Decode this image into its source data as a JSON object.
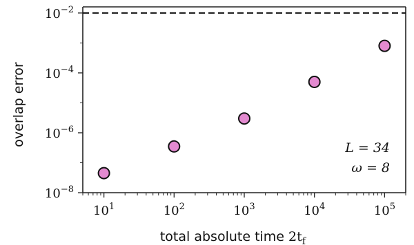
{
  "chart_data": {
    "type": "scatter",
    "xlabel": "total absolute time",
    "xlabel_math": "2t",
    "xlabel_math_sub": "f",
    "ylabel": "overlap error",
    "xscale": "log",
    "yscale": "log",
    "xlim": [
      5,
      200000
    ],
    "ylim": [
      1e-08,
      0.016
    ],
    "x_ticks": [
      {
        "value": 10,
        "base": "10",
        "exp": "1"
      },
      {
        "value": 100,
        "base": "10",
        "exp": "2"
      },
      {
        "value": 1000,
        "base": "10",
        "exp": "3"
      },
      {
        "value": 10000,
        "base": "10",
        "exp": "4"
      },
      {
        "value": 100000,
        "base": "10",
        "exp": "5"
      }
    ],
    "y_ticks": [
      {
        "value": 1e-08,
        "base": "10",
        "exp": "−8"
      },
      {
        "value": 1e-06,
        "base": "10",
        "exp": "−6"
      },
      {
        "value": 0.0001,
        "base": "10",
        "exp": "−4"
      },
      {
        "value": 0.01,
        "base": "10",
        "exp": "−2"
      }
    ],
    "points": [
      {
        "x": 10,
        "y": 4.5e-08
      },
      {
        "x": 100,
        "y": 3.5e-07
      },
      {
        "x": 1000,
        "y": 3e-06
      },
      {
        "x": 10000,
        "y": 5e-05
      },
      {
        "x": 100000,
        "y": 0.0008
      }
    ],
    "reference_line": {
      "y": 0.01,
      "style": "dashed"
    },
    "annotations": [
      "L = 34",
      "ω = 8"
    ],
    "marker_color": "#e38ad0",
    "marker_edge": "#111111",
    "grid": false,
    "legend": "none"
  }
}
